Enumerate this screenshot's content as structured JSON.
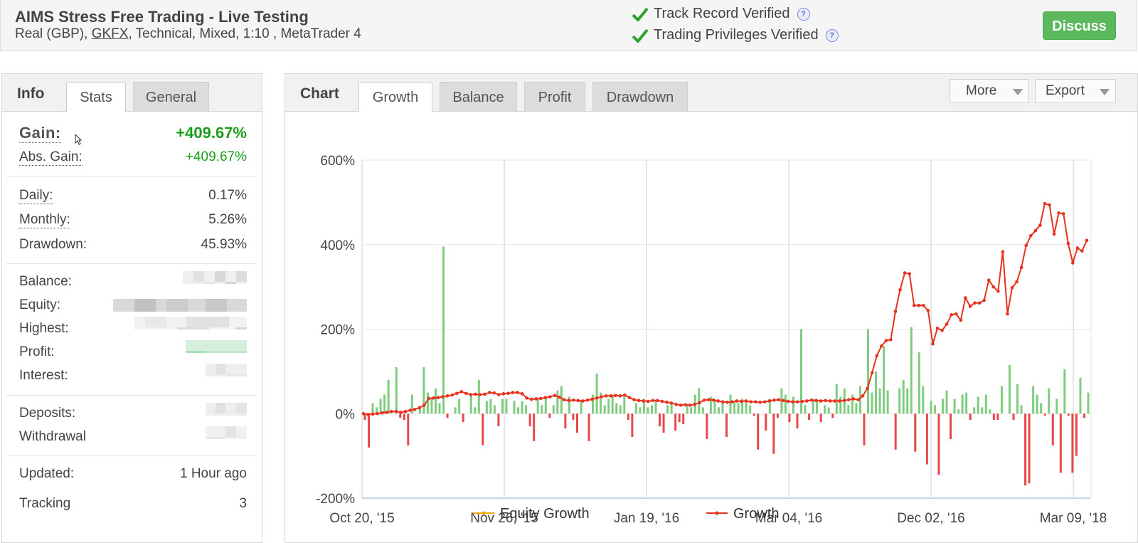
{
  "header": {
    "title": "AIMS Stress Free Trading - Live Testing",
    "subtitle_before": "Real (GBP), ",
    "broker": "GKFX",
    "subtitle_after": ", Technical, Mixed, 1:10 , MetaTrader 4",
    "verifications": [
      "Track Record Verified",
      "Trading Privileges Verified"
    ],
    "help_icon": "?",
    "discuss_label": "Discuss"
  },
  "info": {
    "title": "Info",
    "tabs": [
      "Stats",
      "General"
    ],
    "gain": {
      "label": "Gain:",
      "value": "+409.67%"
    },
    "abs_gain": {
      "label": "Abs. Gain:",
      "value": "+409.67%"
    },
    "daily": {
      "label": "Daily:",
      "value": "0.17%"
    },
    "monthly": {
      "label": "Monthly:",
      "value": "5.26%"
    },
    "drawdown": {
      "label": "Drawdown:",
      "value": "45.93%"
    },
    "balance": {
      "label": "Balance:"
    },
    "equity": {
      "label": "Equity:"
    },
    "highest": {
      "label": "Highest:"
    },
    "profit": {
      "label": "Profit:"
    },
    "interest": {
      "label": "Interest:"
    },
    "deposits": {
      "label": "Deposits:"
    },
    "withdrawals": {
      "label": "Withdrawal"
    },
    "updated": {
      "label": "Updated:",
      "value": "1 Hour ago"
    },
    "tracking": {
      "label": "Tracking",
      "value": "3"
    }
  },
  "chart_panel": {
    "title": "Chart",
    "tabs": [
      "Growth",
      "Balance",
      "Profit",
      "Drawdown"
    ],
    "active_tab": "Growth",
    "more_label": "More",
    "export_label": "Export"
  },
  "chart_data": {
    "type": "line",
    "title": "",
    "y_tick_labels": [
      "600%",
      "400%",
      "200%",
      "0%",
      "-200%"
    ],
    "x_tick_labels": [
      "Oct 20, '15",
      "Nov 26, '15",
      "Jan 19, '16",
      "Mar 04, '16",
      "Dec 02, '16",
      "Mar 09, '18"
    ],
    "ylim": [
      -200,
      600
    ],
    "grid": true,
    "legend_position": "bottom",
    "series": [
      {
        "name": "Equity Growth",
        "color": "#f5a800",
        "values": []
      },
      {
        "name": "Growth",
        "color": "#e8311f",
        "values": [
          0,
          -2,
          -1,
          0,
          2,
          3,
          5,
          5,
          3,
          5,
          8,
          10,
          14,
          20,
          36,
          37,
          38,
          40,
          42,
          44,
          48,
          52,
          48,
          45,
          46,
          45,
          46,
          50,
          49,
          45,
          47,
          48,
          50,
          50,
          47,
          37,
          34,
          35,
          36,
          38,
          40,
          43,
          39,
          33,
          31,
          32,
          31,
          30,
          32,
          34,
          37,
          40,
          42,
          42,
          43,
          42,
          44,
          38,
          33,
          31,
          30,
          29,
          31,
          31,
          29,
          27,
          25,
          22,
          20,
          21,
          20,
          22,
          26,
          32,
          33,
          32,
          30,
          28,
          27,
          28,
          30,
          29,
          30,
          28,
          28,
          27,
          28,
          30,
          32,
          33,
          31,
          29,
          28,
          28,
          29,
          30,
          32,
          31,
          30,
          31,
          30,
          30,
          30,
          31,
          33,
          35,
          33,
          42,
          60,
          97,
          137,
          160,
          173,
          175,
          242,
          293,
          333,
          331,
          256,
          256,
          256,
          244,
          165,
          202,
          197,
          212,
          234,
          236,
          221,
          274,
          254,
          262,
          262,
          268,
          316,
          300,
          290,
          383,
          236,
          298,
          312,
          346,
          398,
          421,
          433,
          446,
          497,
          494,
          425,
          475,
          473,
          403,
          357,
          392,
          385,
          410
        ],
        "bars": [
          -15,
          -80,
          25,
          15,
          35,
          45,
          80,
          0,
          110,
          -10,
          -15,
          -75,
          45,
          0,
          15,
          110,
          50,
          35,
          60,
          25,
          395,
          -10,
          0,
          15,
          35,
          -20,
          0,
          45,
          15,
          80,
          -75,
          30,
          35,
          20,
          -30,
          35,
          35,
          0,
          30,
          15,
          30,
          20,
          -30,
          -65,
          35,
          20,
          35,
          -10,
          20,
          55,
          65,
          -35,
          40,
          -15,
          -45,
          30,
          0,
          -65,
          45,
          95,
          50,
          20,
          35,
          45,
          25,
          20,
          45,
          -15,
          -55,
          25,
          15,
          35,
          15,
          20,
          30,
          -30,
          -45,
          20,
          25,
          -40,
          -20,
          -25,
          20,
          15,
          45,
          60,
          15,
          -60,
          40,
          35,
          15,
          25,
          -55,
          45,
          30,
          25,
          35,
          30,
          20,
          -5,
          -85,
          0,
          -40,
          35,
          -95,
          -10,
          60,
          45,
          -20,
          40,
          -35,
          200,
          20,
          -15,
          35,
          35,
          -20,
          20,
          15,
          -10,
          70,
          40,
          60,
          20,
          45,
          25,
          65,
          -75,
          200,
          50,
          100,
          60,
          160,
          55,
          0,
          -85,
          60,
          80,
          60,
          205,
          -90,
          145,
          65,
          -120,
          30,
          20,
          -145,
          35,
          55,
          -60,
          35,
          10,
          45,
          50,
          -15,
          15,
          40,
          15,
          45,
          10,
          -15,
          -15,
          65,
          0,
          115,
          -15,
          70,
          20,
          -170,
          -165,
          65,
          45,
          25,
          -5,
          60,
          -75,
          35,
          -140,
          105,
          -5,
          -140,
          -100,
          85,
          -10,
          50
        ]
      }
    ]
  }
}
